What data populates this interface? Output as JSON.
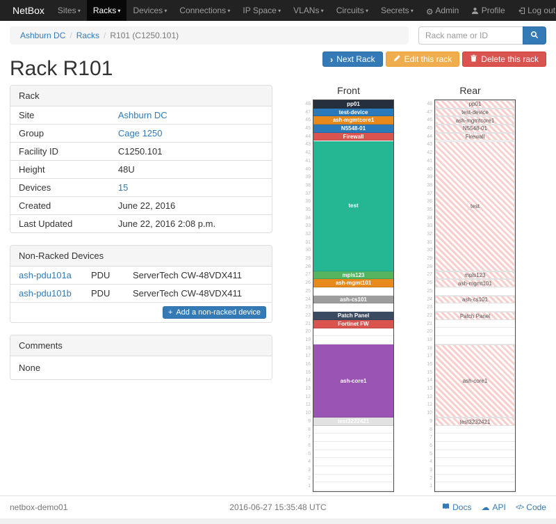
{
  "navbar": {
    "brand": "NetBox",
    "items": [
      "Sites",
      "Racks",
      "Devices",
      "Connections",
      "IP Space",
      "VLANs",
      "Circuits",
      "Secrets"
    ],
    "active_item": "Racks",
    "admin_label": "Admin",
    "profile_label": "Profile",
    "logout_label": "Log out"
  },
  "icons": {
    "gear": "⚙",
    "caret": "▾",
    "chevron_right": "›",
    "plus": "+",
    "cloud": "☁",
    "code": "</>"
  },
  "breadcrumb": {
    "items": [
      "Ashburn DC",
      "Racks",
      "R101 (C1250.101)"
    ]
  },
  "search": {
    "placeholder": "Rack name or ID"
  },
  "actions": {
    "next": "Next Rack",
    "edit": "Edit this rack",
    "delete": "Delete this rack"
  },
  "page_title": "Rack R101",
  "rack_panel": {
    "title": "Rack",
    "rows": [
      {
        "label": "Site",
        "value": "Ashburn DC",
        "link": true
      },
      {
        "label": "Group",
        "value": "Cage 1250",
        "link": true
      },
      {
        "label": "Facility ID",
        "value": "C1250.101",
        "link": false
      },
      {
        "label": "Height",
        "value": "48U",
        "link": false
      },
      {
        "label": "Devices",
        "value": "15",
        "link": true
      },
      {
        "label": "Created",
        "value": "June 22, 2016",
        "link": false
      },
      {
        "label": "Last Updated",
        "value": "June 22, 2016 2:08 p.m.",
        "link": false
      }
    ]
  },
  "non_racked_panel": {
    "title": "Non-Racked Devices",
    "rows": [
      {
        "name": "ash-pdu101a",
        "type": "PDU",
        "model": "ServerTech CW-48VDX411"
      },
      {
        "name": "ash-pdu101b",
        "type": "PDU",
        "model": "ServerTech CW-48VDX411"
      }
    ],
    "add_button": "Add a non-racked device"
  },
  "comments_panel": {
    "title": "Comments",
    "body": "None"
  },
  "elevations": {
    "units": 48,
    "front": {
      "title": "Front",
      "devices": [
        {
          "label": "pp01",
          "unit": 48,
          "height": 1,
          "color": "#252f3e"
        },
        {
          "label": "test-device",
          "unit": 47,
          "height": 1,
          "color": "#2a79b9"
        },
        {
          "label": "ash-mgmtcore1",
          "unit": 46,
          "height": 1,
          "color": "#e8891c"
        },
        {
          "label": "N5548-01",
          "unit": 45,
          "height": 1,
          "color": "#2a79b9"
        },
        {
          "label": "Firewall",
          "unit": 44,
          "height": 1,
          "color": "#d9534f"
        },
        {
          "label": "test",
          "unit": 43,
          "height": 16,
          "color": "#25b694"
        },
        {
          "label": "mpls123",
          "unit": 27,
          "height": 1,
          "color": "#55b45f"
        },
        {
          "label": "ash-mgmt101",
          "unit": 26,
          "height": 1,
          "color": "#e8891c"
        },
        {
          "label": "ash-cs101",
          "unit": 24,
          "height": 1,
          "color": "#9d9d9d"
        },
        {
          "label": "Patch Panel",
          "unit": 22,
          "height": 1,
          "color": "#394a61"
        },
        {
          "label": "Fortinet FW",
          "unit": 21,
          "height": 1,
          "color": "#d9534f"
        },
        {
          "label": "ash-core1",
          "unit": 18,
          "height": 9,
          "color": "#9a55b4"
        },
        {
          "label": "test3232421",
          "unit": 9,
          "height": 1,
          "color": "#e2e2e2",
          "text_color": "#ffffff"
        }
      ]
    },
    "rear": {
      "title": "Rear",
      "devices": [
        {
          "label": "pp01",
          "unit": 48,
          "height": 1
        },
        {
          "label": "test-device",
          "unit": 47,
          "height": 1
        },
        {
          "label": "ash-mgmtcore1",
          "unit": 46,
          "height": 1
        },
        {
          "label": "N5548-01",
          "unit": 45,
          "height": 1
        },
        {
          "label": "Firewall",
          "unit": 44,
          "height": 1
        },
        {
          "label": "test",
          "unit": 43,
          "height": 16
        },
        {
          "label": "mpls123",
          "unit": 27,
          "height": 1
        },
        {
          "label": "ash-mgmt101",
          "unit": 26,
          "height": 1
        },
        {
          "label": "ash-cs101",
          "unit": 24,
          "height": 1
        },
        {
          "label": "Patch Panel",
          "unit": 22,
          "height": 1
        },
        {
          "label": "ash-core1",
          "unit": 18,
          "height": 9
        },
        {
          "label": "test3232421",
          "unit": 9,
          "height": 1
        }
      ]
    }
  },
  "footer": {
    "hostname": "netbox-demo01",
    "timestamp": "2016-06-27 15:35:48 UTC",
    "docs_label": "Docs",
    "api_label": "API",
    "code_label": "Code"
  }
}
